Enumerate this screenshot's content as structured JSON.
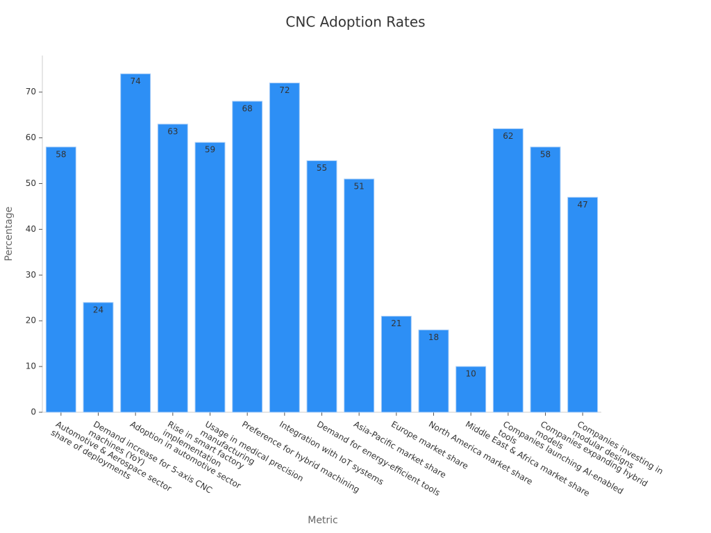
{
  "chart_data": {
    "type": "bar",
    "title": "CNC Adoption Rates",
    "x_label": "Metric",
    "y_label": "Percentage",
    "categories": [
      "Automotive & Aerospace sector share of deployments",
      "Demand increase for 5-axis CNC machines (YoY)",
      "Adoption in automotive sector",
      "Rise in smart factory implementation",
      "Usage in medical precision manufacturing",
      "Preference for hybrid machining",
      "Integration with IoT systems",
      "Demand for energy-efficient tools",
      "Asia-Pacific market share",
      "Europe market share",
      "North America market share",
      "Middle East & Africa market share",
      "Companies launching AI-enabled tools",
      "Companies expanding hybrid models",
      "Companies investing in modular designs"
    ],
    "values": [
      58,
      24,
      74,
      63,
      59,
      68,
      72,
      55,
      51,
      21,
      18,
      10,
      62,
      58,
      47
    ],
    "color": "#2d8ff5",
    "ylim": [
      0,
      78
    ],
    "yticks": [
      0,
      10,
      20,
      30,
      40,
      50,
      60,
      70
    ],
    "grid": false
  }
}
